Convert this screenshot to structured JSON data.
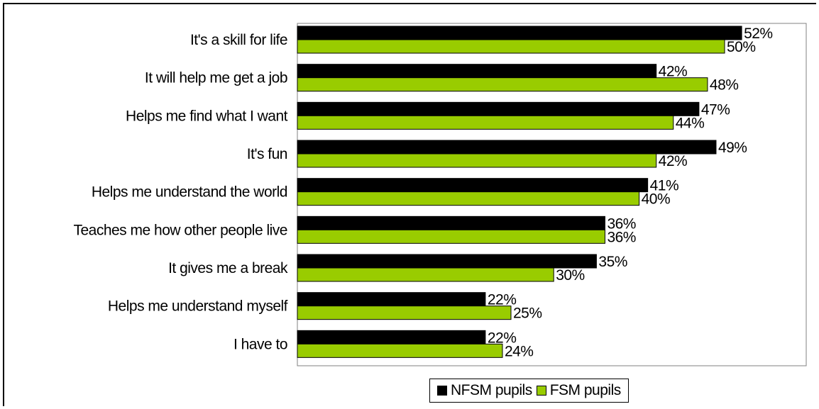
{
  "chart_data": {
    "type": "bar",
    "orientation": "horizontal",
    "categories": [
      "It's a skill for life",
      "It will help me get a job",
      "Helps me find what I want",
      "It's fun",
      "Helps me understand the world",
      "Teaches me how other people live",
      "It gives me a break",
      "Helps me understand myself",
      "I have to"
    ],
    "series": [
      {
        "name": "NFSM pupils",
        "color": "#000000",
        "values": [
          52,
          42,
          47,
          49,
          41,
          36,
          35,
          22,
          22
        ]
      },
      {
        "name": "FSM pupils",
        "color": "#99cc00",
        "values": [
          50,
          48,
          44,
          42,
          40,
          36,
          30,
          25,
          24
        ]
      }
    ],
    "value_labels": [
      [
        "52%",
        "42%",
        "47%",
        "49%",
        "41%",
        "36%",
        "35%",
        "22%",
        "22%"
      ],
      [
        "50%",
        "48%",
        "44%",
        "42%",
        "40%",
        "36%",
        "30%",
        "25%",
        "24%"
      ]
    ],
    "value_suffix": "%",
    "xlim": [
      0,
      60
    ],
    "grid": false,
    "legend_position": "bottom",
    "plot_background": "#ffffff",
    "plot_border_color": "#808080"
  },
  "legend": {
    "nfsm_label": "NFSM pupils",
    "fsm_label": "FSM pupils"
  }
}
